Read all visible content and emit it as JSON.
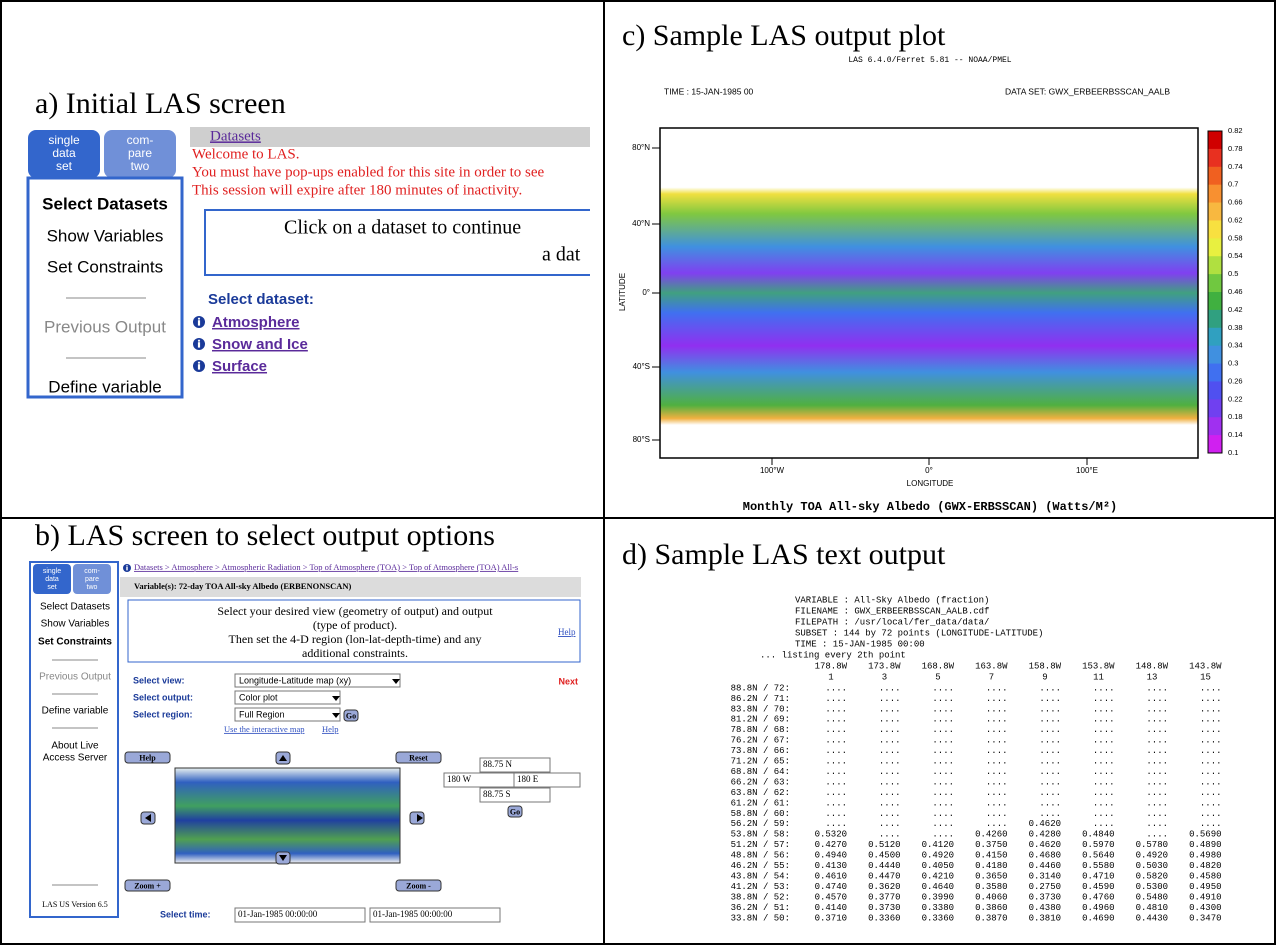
{
  "panels": {
    "a": {
      "label": "a)  Initial LAS screen",
      "tabs": [
        [
          "single",
          "data",
          "set"
        ],
        [
          "com-",
          "pare",
          "two"
        ]
      ],
      "nav": [
        "Select Datasets",
        "Show Variables",
        "Set Constraints",
        "Previous Output",
        "Define variable"
      ],
      "breadcrumb": "Datasets",
      "messages": [
        "Welcome to LAS.",
        "You must have pop-ups enabled for this site in order to see",
        "This session will expire after 180 minutes of inactivity."
      ],
      "prompt": [
        "Click on a dataset to continue",
        "a dat"
      ],
      "select_heading": "Select dataset:",
      "datasets": [
        "Atmosphere",
        "Snow and Ice",
        "Surface"
      ]
    },
    "b": {
      "label": "b)  LAS screen to select output options",
      "tabs": [
        [
          "single",
          "data",
          "set"
        ],
        [
          "com-",
          "pare",
          "two"
        ]
      ],
      "nav": [
        "Select Datasets",
        "Show Variables",
        "Set Constraints",
        "Previous Output",
        "Define variable",
        "About Live",
        "Access Server"
      ],
      "version": "LAS US Version 6.5",
      "breadcrumb": "Datasets > Atmosphere > Atmospheric Radiation > Top of Atmosphere (TOA) > Top of Atmosphere (TOA) All-s",
      "variable": "Variable(s): 72-day TOA All-sky Albedo (ERBENONSCAN)",
      "instructions": [
        "Select your desired view (geometry of output) and output",
        "(type of product).",
        "Then set the 4-D region (lon-lat-depth-time) and any",
        "additional constraints."
      ],
      "help": "Help",
      "next": "Next",
      "fields": [
        {
          "label": "Select view:",
          "value": "Longitude-Latitude map (xy)"
        },
        {
          "label": "Select output:",
          "value": "Color plot"
        },
        {
          "label": "Select region:",
          "value": "Full Region"
        }
      ],
      "go": "Go",
      "links": [
        "Use the interactive map",
        "Help"
      ],
      "map_buttons": {
        "help": "Help",
        "reset": "Reset",
        "zoom_in": "Zoom +",
        "zoom_out": "Zoom -"
      },
      "coords": {
        "north": "88.75 N",
        "west": "180 W",
        "east": "180 E",
        "south": "88.75 S"
      },
      "time_label": "Select time:",
      "times": [
        "01-Jan-1985 00:00:00",
        "01-Jan-1985 00:00:00"
      ]
    },
    "c": {
      "label": "c)  Sample LAS output plot",
      "header": "LAS 6.4.0/Ferret 5.81 -- NOAA/PMEL",
      "time": "TIME : 15-JAN-1985 00",
      "dataset": "DATA SET: GWX_ERBEERBSSCAN_AALB",
      "y_axis_label": "LATITUDE",
      "x_axis_label": "LONGITUDE",
      "y_ticks": [
        "80°N",
        "40°N",
        "0°",
        "40°S",
        "80°S"
      ],
      "x_ticks": [
        "100°W",
        "0°",
        "100°E"
      ],
      "colorbar": [
        "0.82",
        "0.78",
        "0.74",
        "0.7",
        "0.66",
        "0.62",
        "0.58",
        "0.54",
        "0.5",
        "0.46",
        "0.42",
        "0.38",
        "0.34",
        "0.3",
        "0.26",
        "0.22",
        "0.18",
        "0.14",
        "0.1"
      ],
      "caption": "Monthly TOA All-sky Albedo (GWX-ERBSSCAN) (Watts/M²)"
    },
    "d": {
      "label": "d)  Sample LAS text output",
      "header_lines": [
        "VARIABLE : All-Sky Albedo (fraction)",
        "FILENAME : GWX_ERBEERBSSCAN_AALB.cdf",
        "FILEPATH : /usr/local/fer_data/data/",
        "SUBSET   : 144 by 72 points (LONGITUDE-LATITUDE)",
        "TIME     : 15-JAN-1985 00:00"
      ],
      "listing": "... listing every    2th point",
      "columns": [
        "178.8W",
        "173.8W",
        "168.8W",
        "163.8W",
        "158.8W",
        "153.8W",
        "148.8W",
        "143.8W"
      ],
      "indices": [
        "1",
        "3",
        "5",
        "7",
        "9",
        "11",
        "13",
        "15"
      ],
      "rows": [
        {
          "label": "88.8N / 72:",
          "cells": [
            "....",
            "....",
            "....",
            "....",
            "....",
            "....",
            "....",
            "...."
          ]
        },
        {
          "label": "86.2N / 71:",
          "cells": [
            "....",
            "....",
            "....",
            "....",
            "....",
            "....",
            "....",
            "...."
          ]
        },
        {
          "label": "83.8N / 70:",
          "cells": [
            "....",
            "....",
            "....",
            "....",
            "....",
            "....",
            "....",
            "...."
          ]
        },
        {
          "label": "81.2N / 69:",
          "cells": [
            "....",
            "....",
            "....",
            "....",
            "....",
            "....",
            "....",
            "...."
          ]
        },
        {
          "label": "78.8N / 68:",
          "cells": [
            "....",
            "....",
            "....",
            "....",
            "....",
            "....",
            "....",
            "...."
          ]
        },
        {
          "label": "76.2N / 67:",
          "cells": [
            "....",
            "....",
            "....",
            "....",
            "....",
            "....",
            "....",
            "...."
          ]
        },
        {
          "label": "73.8N / 66:",
          "cells": [
            "....",
            "....",
            "....",
            "....",
            "....",
            "....",
            "....",
            "...."
          ]
        },
        {
          "label": "71.2N / 65:",
          "cells": [
            "....",
            "....",
            "....",
            "....",
            "....",
            "....",
            "....",
            "...."
          ]
        },
        {
          "label": "68.8N / 64:",
          "cells": [
            "....",
            "....",
            "....",
            "....",
            "....",
            "....",
            "....",
            "...."
          ]
        },
        {
          "label": "66.2N / 63:",
          "cells": [
            "....",
            "....",
            "....",
            "....",
            "....",
            "....",
            "....",
            "...."
          ]
        },
        {
          "label": "63.8N / 62:",
          "cells": [
            "....",
            "....",
            "....",
            "....",
            "....",
            "....",
            "....",
            "...."
          ]
        },
        {
          "label": "61.2N / 61:",
          "cells": [
            "....",
            "....",
            "....",
            "....",
            "....",
            "....",
            "....",
            "...."
          ]
        },
        {
          "label": "58.8N / 60:",
          "cells": [
            "....",
            "....",
            "....",
            "....",
            "....",
            "....",
            "....",
            "...."
          ]
        },
        {
          "label": "56.2N / 59:",
          "cells": [
            "....",
            "....",
            "....",
            "....",
            "0.4620",
            "....",
            "....",
            "...."
          ]
        },
        {
          "label": "53.8N / 58:",
          "cells": [
            "0.5320",
            "....",
            "....",
            "0.4260",
            "0.4280",
            "0.4840",
            "....",
            "0.5690"
          ]
        },
        {
          "label": "51.2N / 57:",
          "cells": [
            "0.4270",
            "0.5120",
            "0.4120",
            "0.3750",
            "0.4620",
            "0.5970",
            "0.5780",
            "0.4890"
          ]
        },
        {
          "label": "48.8N / 56:",
          "cells": [
            "0.4940",
            "0.4500",
            "0.4920",
            "0.4150",
            "0.4680",
            "0.5640",
            "0.4920",
            "0.4980"
          ]
        },
        {
          "label": "46.2N / 55:",
          "cells": [
            "0.4130",
            "0.4440",
            "0.4050",
            "0.4180",
            "0.4460",
            "0.5580",
            "0.5030",
            "0.4820"
          ]
        },
        {
          "label": "43.8N / 54:",
          "cells": [
            "0.4610",
            "0.4470",
            "0.4210",
            "0.3650",
            "0.3140",
            "0.4710",
            "0.5820",
            "0.4580"
          ]
        },
        {
          "label": "41.2N / 53:",
          "cells": [
            "0.4740",
            "0.3620",
            "0.4640",
            "0.3580",
            "0.2750",
            "0.4590",
            "0.5300",
            "0.4950"
          ]
        },
        {
          "label": "38.8N / 52:",
          "cells": [
            "0.4570",
            "0.3770",
            "0.3990",
            "0.4060",
            "0.3730",
            "0.4760",
            "0.5480",
            "0.4910"
          ]
        },
        {
          "label": "36.2N / 51:",
          "cells": [
            "0.4140",
            "0.3730",
            "0.3380",
            "0.3860",
            "0.4380",
            "0.4960",
            "0.4810",
            "0.4300"
          ]
        },
        {
          "label": "33.8N / 50:",
          "cells": [
            "0.3710",
            "0.3360",
            "0.3360",
            "0.3870",
            "0.3810",
            "0.4690",
            "0.4430",
            "0.3470"
          ]
        }
      ]
    }
  }
}
